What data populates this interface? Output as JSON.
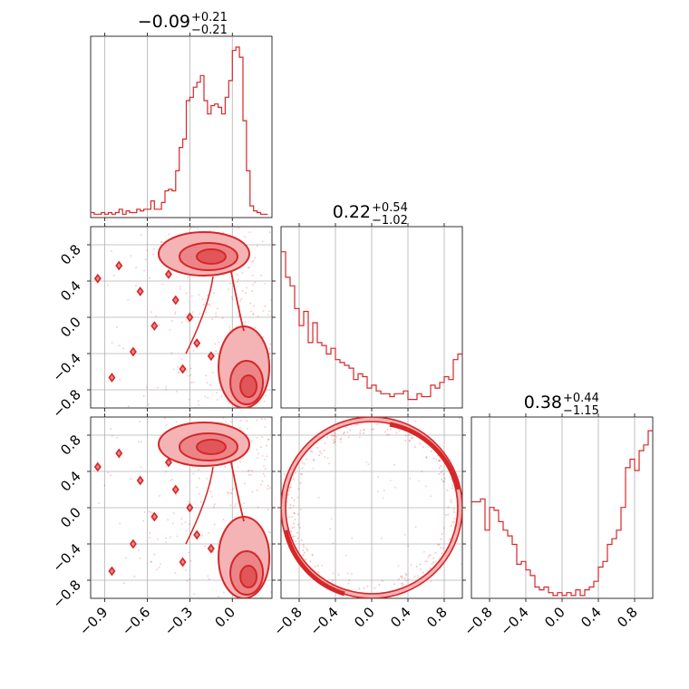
{
  "chart_data": {
    "type": "corner",
    "color": "#d62728",
    "parameters": [
      {
        "title": {
          "value": "−0.09",
          "plus": "+0.21",
          "minus": "−0.21"
        },
        "range": [
          -1.0,
          0.28
        ],
        "ticks": [
          -0.9,
          -0.6,
          -0.3,
          0.0
        ],
        "tick_labels": [
          "−0.9",
          "−0.6",
          "−0.3",
          "0.0"
        ],
        "histogram": {
          "bin_start": -1.0,
          "bin_width": 0.025,
          "counts": [
            3,
            2,
            2,
            3,
            2,
            3,
            2,
            3,
            5,
            2,
            4,
            3,
            3,
            5,
            4,
            5,
            5,
            10,
            5,
            5,
            9,
            16,
            17,
            16,
            28,
            42,
            47,
            70,
            72,
            78,
            81,
            85,
            70,
            62,
            67,
            68,
            66,
            62,
            72,
            82,
            100,
            102,
            96,
            58,
            28,
            7,
            4,
            3,
            2,
            2
          ]
        }
      },
      {
        "title": {
          "value": "0.22",
          "plus": "+0.54",
          "minus": "−1.02"
        },
        "range": [
          -1.0,
          1.0
        ],
        "ticks": [
          -0.8,
          -0.4,
          0.0,
          0.4,
          0.8
        ],
        "tick_labels": [
          "−0.8",
          "−0.4",
          "0.0",
          "0.4",
          "0.8"
        ],
        "histogram": {
          "bin_start": -1.0,
          "bin_width": 0.05,
          "counts": [
            55,
            46,
            43,
            35,
            29,
            34,
            23,
            30,
            23,
            22,
            19,
            21,
            17,
            16,
            15,
            14,
            10,
            12,
            11,
            7,
            8,
            6,
            5,
            5,
            4,
            5,
            5,
            6,
            3,
            3,
            5,
            4,
            4,
            8,
            7,
            9,
            11,
            10,
            17,
            19,
            23,
            28,
            31,
            40,
            45,
            47,
            52,
            60,
            58,
            44,
            42,
            20,
            18,
            15,
            12,
            10,
            8,
            7,
            5,
            4
          ]
        }
      },
      {
        "title": {
          "value": "0.38",
          "plus": "+0.44",
          "minus": "−1.15"
        },
        "range": [
          -1.0,
          1.0
        ],
        "ticks": [
          -0.8,
          -0.4,
          0.0,
          0.4,
          0.8
        ],
        "tick_labels": [
          "−0.8",
          "−0.4",
          "0.0",
          "0.4",
          "0.8"
        ],
        "histogram": {
          "bin_start": -1.0,
          "bin_width": 0.05,
          "counts": [
            34,
            34,
            35,
            24,
            32,
            31,
            27,
            24,
            22,
            19,
            12,
            13,
            10,
            8,
            4,
            3,
            4,
            2,
            1,
            2,
            1,
            2,
            1,
            3,
            1,
            3,
            4,
            6,
            11,
            13,
            19,
            21,
            24,
            32,
            46,
            49,
            45,
            52,
            54,
            59,
            56,
            60,
            44,
            45
          ]
        }
      }
    ],
    "panels_2d": [
      {
        "x_param": 0,
        "y_param": 1
      },
      {
        "x_param": 0,
        "y_param": 2
      },
      {
        "x_param": 1,
        "y_param": 2
      }
    ],
    "grid": true
  }
}
